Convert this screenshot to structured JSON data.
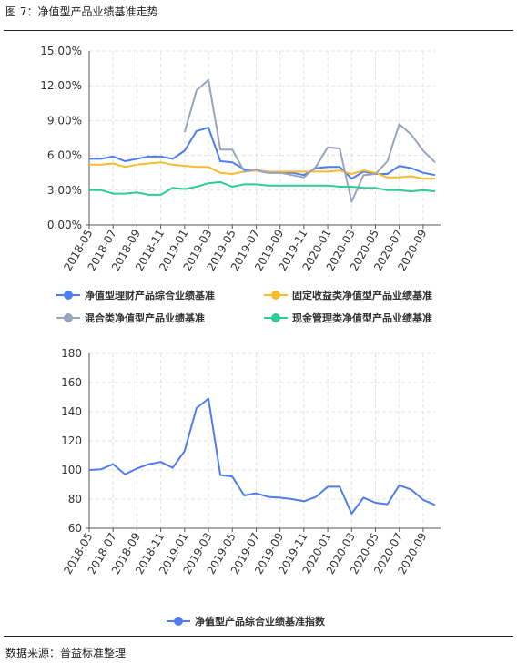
{
  "header": {
    "title": "图 7：净值型产品业绩基准走势"
  },
  "footer": {
    "source": "数据来源：普益标准整理"
  },
  "colors": {
    "comprehensive": "#4f7df0",
    "fixed_income": "#f7bc2d",
    "mixed": "#9aa3c0",
    "cash": "#2fcc95",
    "axis": "#555555",
    "grid": "#e2e2e2"
  },
  "chart_data": [
    {
      "type": "line",
      "categories": [
        "2018-05",
        "2018-06",
        "2018-07",
        "2018-08",
        "2018-09",
        "2018-10",
        "2018-11",
        "2018-12",
        "2019-01",
        "2019-02",
        "2019-03",
        "2019-04",
        "2019-05",
        "2019-06",
        "2019-07",
        "2019-08",
        "2019-09",
        "2019-10",
        "2019-11",
        "2019-12",
        "2020-01",
        "2020-02",
        "2020-03",
        "2020-04",
        "2020-05",
        "2020-06",
        "2020-07",
        "2020-08",
        "2020-09",
        "2020-10"
      ],
      "tick_labels": [
        "2018-05",
        "2018-07",
        "2018-09",
        "2018-11",
        "2019-01",
        "2019-03",
        "2019-05",
        "2019-07",
        "2019-09",
        "2019-11",
        "2020-01",
        "2020-03",
        "2020-05",
        "2020-07",
        "2020-09"
      ],
      "y_ticks": [
        "0.00%",
        "3.00%",
        "6.00%",
        "9.00%",
        "12.00%",
        "15.00%"
      ],
      "ylim": [
        0,
        15
      ],
      "y_unit": "%",
      "grid": true,
      "legend_position": "bottom",
      "series": [
        {
          "name": "净值型理财产品综合业绩基准",
          "color_key": "comprehensive",
          "values": [
            5.7,
            5.7,
            5.9,
            5.5,
            5.7,
            5.9,
            5.9,
            5.7,
            6.4,
            8.1,
            8.4,
            5.5,
            5.4,
            4.8,
            4.7,
            4.5,
            4.5,
            4.5,
            4.3,
            4.9,
            5.0,
            5.0,
            4.0,
            4.6,
            4.4,
            4.4,
            5.1,
            4.9,
            4.5,
            4.3
          ]
        },
        {
          "name": "固定收益类净值型产品业绩基准",
          "color_key": "fixed_income",
          "values": [
            5.2,
            5.2,
            5.3,
            5.0,
            5.2,
            5.3,
            5.4,
            5.2,
            5.1,
            5.0,
            5.0,
            4.5,
            4.4,
            4.6,
            4.7,
            4.6,
            4.6,
            4.6,
            4.6,
            4.6,
            4.6,
            4.7,
            4.4,
            4.7,
            4.5,
            4.1,
            4.1,
            4.2,
            4.0,
            4.0
          ]
        },
        {
          "name": "混合类净值型产品业绩基准",
          "color_key": "mixed",
          "values": [
            null,
            null,
            null,
            null,
            null,
            null,
            null,
            null,
            8.0,
            11.6,
            12.5,
            6.5,
            6.5,
            4.6,
            4.8,
            4.5,
            4.5,
            4.3,
            4.1,
            5.0,
            6.7,
            6.6,
            2.0,
            4.3,
            4.4,
            5.5,
            8.7,
            7.8,
            6.4,
            5.4
          ]
        },
        {
          "name": "现金管理类净值型产品业绩基准",
          "color_key": "cash",
          "values": [
            3.0,
            3.0,
            2.7,
            2.7,
            2.8,
            2.6,
            2.6,
            3.2,
            3.1,
            3.3,
            3.6,
            3.7,
            3.3,
            3.5,
            3.5,
            3.4,
            3.4,
            3.4,
            3.4,
            3.4,
            3.4,
            3.3,
            3.3,
            3.2,
            3.2,
            3.0,
            3.0,
            2.9,
            3.0,
            2.9
          ]
        }
      ]
    },
    {
      "type": "line",
      "categories": [
        "2018-05",
        "2018-06",
        "2018-07",
        "2018-08",
        "2018-09",
        "2018-10",
        "2018-11",
        "2018-12",
        "2019-01",
        "2019-02",
        "2019-03",
        "2019-04",
        "2019-05",
        "2019-06",
        "2019-07",
        "2019-08",
        "2019-09",
        "2019-10",
        "2019-11",
        "2019-12",
        "2020-01",
        "2020-02",
        "2020-03",
        "2020-04",
        "2020-05",
        "2020-06",
        "2020-07",
        "2020-08",
        "2020-09",
        "2020-10"
      ],
      "tick_labels": [
        "2018-05",
        "2018-07",
        "2018-09",
        "2018-11",
        "2019-01",
        "2019-03",
        "2019-05",
        "2019-07",
        "2019-09",
        "2019-11",
        "2020-01",
        "2020-03",
        "2020-05",
        "2020-07",
        "2020-09"
      ],
      "y_ticks": [
        "60",
        "80",
        "100",
        "120",
        "140",
        "160",
        "180"
      ],
      "ylim": [
        60,
        180
      ],
      "grid": true,
      "legend_position": "bottom",
      "series": [
        {
          "name": "净值型产品综合业绩基准指数",
          "color_key": "comprehensive",
          "values": [
            100,
            100.5,
            104,
            97,
            101,
            104,
            105.5,
            101.5,
            113,
            142.5,
            149,
            96.5,
            95.5,
            82.5,
            84,
            81.5,
            81,
            80,
            78.5,
            81.5,
            88.5,
            88.5,
            70,
            81,
            77.5,
            76.5,
            89.5,
            86.5,
            79.5,
            76
          ]
        }
      ]
    }
  ]
}
